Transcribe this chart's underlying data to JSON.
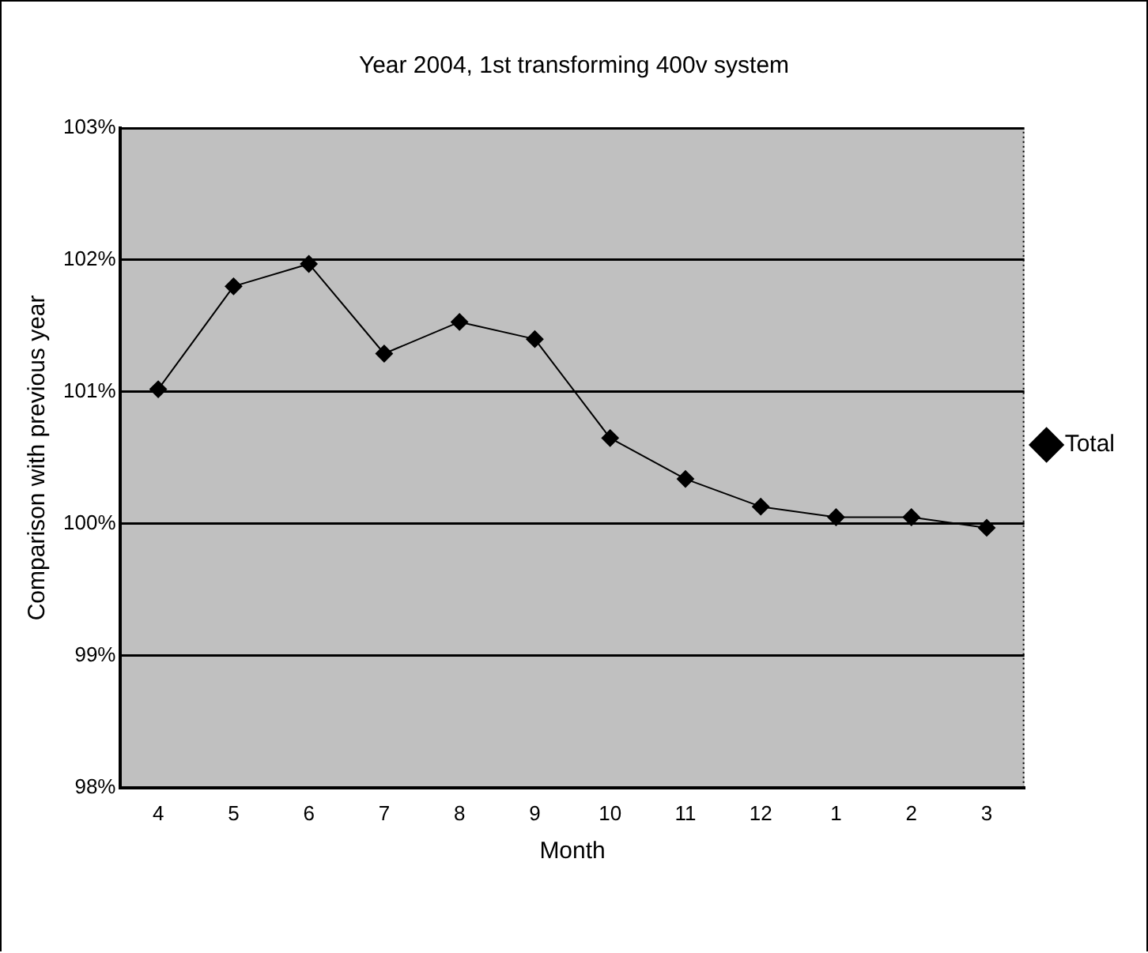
{
  "chart_data": {
    "type": "line",
    "title": "Year 2004, 1st transforming 400v system",
    "xlabel": "Month",
    "ylabel": "Comparison with previous year",
    "categories": [
      "4",
      "5",
      "6",
      "7",
      "8",
      "9",
      "10",
      "11",
      "12",
      "1",
      "2",
      "3"
    ],
    "series": [
      {
        "name": "Total",
        "color": "#000000",
        "values": [
          101.02,
          101.8,
          101.97,
          101.29,
          101.53,
          101.4,
          100.65,
          100.34,
          100.13,
          100.05,
          100.05,
          99.97
        ]
      }
    ],
    "ylim": [
      98,
      103
    ],
    "yticks": [
      {
        "value": 98,
        "label": "98%"
      },
      {
        "value": 99,
        "label": "99%"
      },
      {
        "value": 100,
        "label": "100%"
      },
      {
        "value": 101,
        "label": "101%"
      },
      {
        "value": 102,
        "label": "102%"
      },
      {
        "value": 103,
        "label": "103%"
      }
    ],
    "grid": "y",
    "legend": "right",
    "marker": "diamond",
    "line_style": "solid"
  }
}
